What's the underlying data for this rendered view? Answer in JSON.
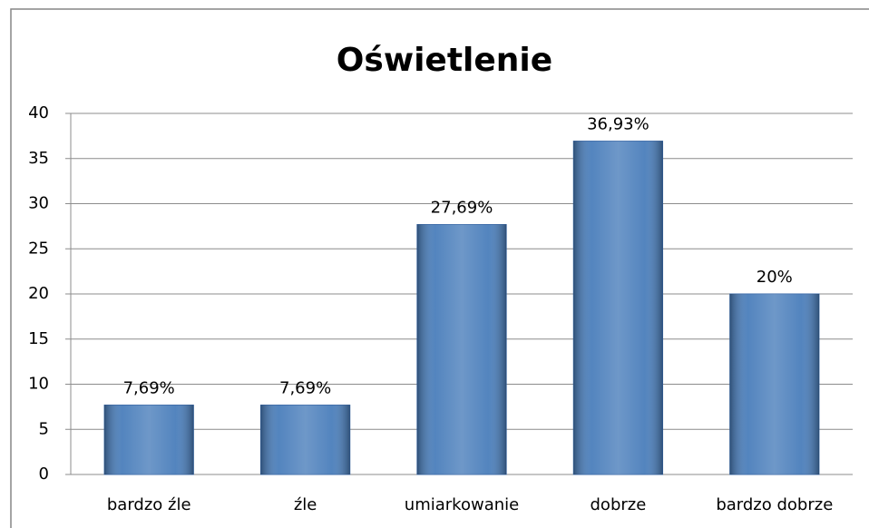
{
  "chart_data": {
    "type": "bar",
    "title": "Oświetlenie",
    "categories": [
      "bardzo źle",
      "źle",
      "umiarkowanie",
      "dobrze",
      "bardzo dobrze"
    ],
    "values": [
      7.69,
      7.69,
      27.69,
      36.93,
      20
    ],
    "value_labels": [
      "7,69%",
      "7,69%",
      "27,69%",
      "36,93%",
      "20%"
    ],
    "color": "#4a7ebb",
    "ylim": [
      0,
      40
    ],
    "yticks": [
      0,
      5,
      10,
      15,
      20,
      25,
      30,
      35,
      40
    ],
    "grid": true
  }
}
